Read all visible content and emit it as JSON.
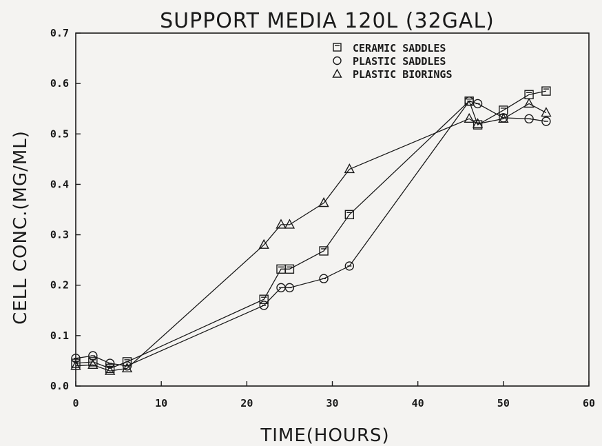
{
  "chart_data": {
    "type": "line",
    "title": "SUPPORT MEDIA 120L (32GAL)",
    "xlabel": "TIME(HOURS)",
    "ylabel": "CELL CONC.(MG/ML)",
    "xlim": [
      0,
      60
    ],
    "ylim": [
      0,
      0.7
    ],
    "xticks": [
      0,
      10,
      20,
      30,
      40,
      50,
      60
    ],
    "yticks": [
      0.0,
      0.1,
      0.2,
      0.3,
      0.4,
      0.5,
      0.6,
      0.7
    ],
    "xtick_labels": [
      "0",
      "10",
      "20",
      "30",
      "40",
      "50",
      "60"
    ],
    "ytick_labels": [
      "0.0",
      "0.1",
      "0.2",
      "0.3",
      "0.4",
      "0.5",
      "0.6",
      "0.7"
    ],
    "grid": false,
    "legend_position": "top-right",
    "series": [
      {
        "name": "CERAMIC SADDLES",
        "marker": "square",
        "x": [
          0,
          2,
          4,
          6,
          22,
          24,
          25,
          29,
          32,
          46,
          47,
          50,
          53,
          55
        ],
        "y": [
          0.045,
          0.048,
          0.035,
          0.048,
          0.172,
          0.232,
          0.232,
          0.268,
          0.34,
          0.565,
          0.518,
          0.547,
          0.578,
          0.585
        ]
      },
      {
        "name": "PLASTIC SADDLES",
        "marker": "circle",
        "x": [
          0,
          2,
          4,
          6,
          22,
          24,
          25,
          29,
          32,
          46,
          47,
          50,
          53,
          55
        ],
        "y": [
          0.055,
          0.06,
          0.045,
          0.04,
          0.16,
          0.195,
          0.195,
          0.213,
          0.238,
          0.565,
          0.56,
          0.532,
          0.53,
          0.525
        ]
      },
      {
        "name": "PLASTIC BIORINGS",
        "marker": "triangle",
        "x": [
          0,
          2,
          4,
          6,
          22,
          24,
          25,
          29,
          32,
          46,
          47,
          50,
          53,
          55
        ],
        "y": [
          0.04,
          0.042,
          0.03,
          0.035,
          0.28,
          0.32,
          0.32,
          0.363,
          0.43,
          0.53,
          0.52,
          0.53,
          0.56,
          0.542
        ]
      }
    ]
  }
}
